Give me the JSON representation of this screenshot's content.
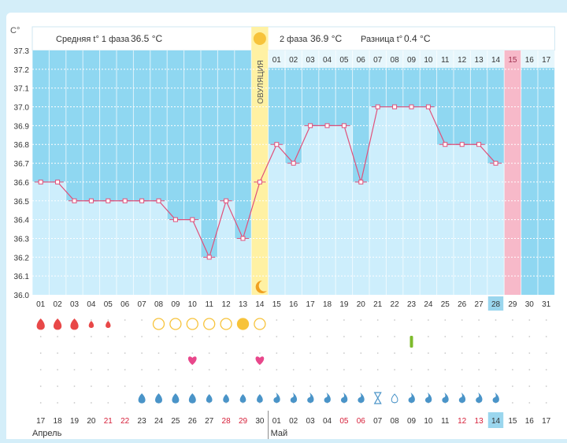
{
  "chart_data": {
    "type": "line",
    "title": "",
    "ylabel": "C°",
    "ylim": [
      36.0,
      37.3
    ],
    "yticks": [
      "37.3",
      "37.2",
      "37.1",
      "37.0",
      "36.9",
      "36.8",
      "36.7",
      "36.6",
      "36.5",
      "36.4",
      "36.3",
      "36.2",
      "36.1",
      "36.0"
    ],
    "phase1_label": "Средняя t° 1 фаза",
    "phase1_value": "36.5 °C",
    "phase2_label": "2 фаза",
    "phase2_value": "36.9 °C",
    "diff_label": "Разница t°",
    "diff_value": "0.4 °C",
    "ovulation_label": "ОВУЛЯЦИЯ",
    "ovulation_day": 14,
    "highlight_day": 29,
    "luteal_day_labels": [
      "01",
      "02",
      "03",
      "04",
      "05",
      "06",
      "07",
      "08",
      "09",
      "10",
      "11",
      "12",
      "13",
      "14",
      "15",
      "16",
      "17"
    ],
    "cycle_days": [
      "01",
      "02",
      "03",
      "04",
      "05",
      "06",
      "07",
      "08",
      "09",
      "10",
      "11",
      "12",
      "13",
      "14",
      "15",
      "16",
      "17",
      "18",
      "19",
      "20",
      "21",
      "22",
      "23",
      "24",
      "25",
      "26",
      "27",
      "28",
      "29",
      "30",
      "31"
    ],
    "current_cycle_day": "28",
    "temperatures": [
      36.6,
      36.6,
      36.5,
      36.5,
      36.5,
      36.5,
      36.5,
      36.5,
      36.4,
      36.4,
      36.2,
      36.5,
      36.3,
      36.6,
      36.8,
      36.7,
      36.9,
      36.9,
      36.9,
      36.6,
      37.0,
      37.0,
      37.0,
      37.0,
      36.8,
      36.8,
      36.8,
      36.7
    ],
    "calendar_dates": [
      "17",
      "18",
      "19",
      "20",
      "21",
      "22",
      "23",
      "24",
      "25",
      "26",
      "27",
      "28",
      "29",
      "30",
      "01",
      "02",
      "03",
      "04",
      "05",
      "06",
      "07",
      "08",
      "09",
      "10",
      "11",
      "12",
      "13",
      "14",
      "15",
      "16",
      "17"
    ],
    "weekend_days": [
      4,
      5,
      11,
      12,
      18,
      19,
      25,
      26
    ],
    "today_index": 28,
    "month1": "Апрель",
    "month2": "Май",
    "colors": {
      "bg": "#8fd7f1",
      "bar": "#cdeefc",
      "line": "#e0507a",
      "ovulation": "#fff1a3",
      "highlight": "#f7b9c9",
      "today": "#9ad6ee",
      "weekend": "#d6203a",
      "drop": "#e84848",
      "circle": "#f7c33b"
    }
  },
  "symbols": {
    "menstruation": {
      "days": [
        1,
        2,
        3,
        4,
        5
      ],
      "sizes": [
        "lg",
        "lg",
        "lg",
        "sm",
        "sm"
      ]
    },
    "fertile_circles": {
      "days": [
        8,
        9,
        10,
        11,
        12,
        13,
        14
      ],
      "filled": [
        13
      ]
    },
    "green_mark_day": 23,
    "hearts": [
      10,
      14
    ],
    "discharge": {
      "days": [
        7,
        8,
        9,
        10,
        11,
        12,
        13,
        14,
        15,
        16,
        17,
        18,
        19,
        20,
        21,
        22,
        23,
        24,
        25,
        26,
        27,
        28
      ],
      "hourglass": [
        21
      ],
      "outline": [
        22
      ]
    }
  }
}
